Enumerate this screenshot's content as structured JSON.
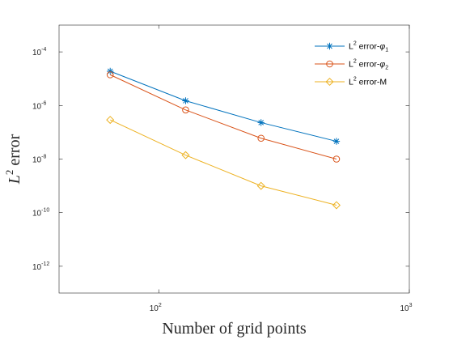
{
  "chart_data": {
    "type": "line",
    "xscale": "log",
    "yscale": "log",
    "xlim": [
      40,
      1000
    ],
    "ylim": [
      1e-13,
      0.001
    ],
    "xticks": [
      {
        "value": 100,
        "base": "10",
        "exp": "2"
      },
      {
        "value": 1000,
        "base": "10",
        "exp": "3"
      }
    ],
    "yticks": [
      {
        "value": 1e-12,
        "base": "10",
        "exp": "-12"
      },
      {
        "value": 1e-10,
        "base": "10",
        "exp": "-10"
      },
      {
        "value": 1e-08,
        "base": "10",
        "exp": "-8"
      },
      {
        "value": 1e-06,
        "base": "10",
        "exp": "-6"
      },
      {
        "value": 0.0001,
        "base": "10",
        "exp": "-4"
      }
    ],
    "x": [
      64,
      128,
      256,
      512
    ],
    "xlabel": "Number of grid points",
    "ylabel": {
      "base": "L",
      "sup": "2",
      "rest": " error"
    },
    "grid": false,
    "legend_position": "top-right",
    "series": [
      {
        "name": {
          "text": "L",
          "sup": "2",
          "rest": " error-",
          "greek": "φ",
          "sub": "1"
        },
        "marker": "asterisk",
        "color": "#0072BD",
        "values": [
          1.9e-05,
          1.5e-06,
          2.3e-07,
          4.6e-08
        ]
      },
      {
        "name": {
          "text": "L",
          "sup": "2",
          "rest": " error-",
          "greek": "φ",
          "sub": "2"
        },
        "marker": "circle",
        "color": "#D95319",
        "values": [
          1.4e-05,
          6.8e-07,
          6e-08,
          1e-08
        ]
      },
      {
        "name": {
          "text": "L",
          "sup": "2",
          "rest": " error-M",
          "greek": "",
          "sub": ""
        },
        "marker": "diamond",
        "color": "#EDB120",
        "values": [
          2.9e-07,
          1.4e-08,
          1e-09,
          1.9e-10
        ]
      }
    ]
  }
}
